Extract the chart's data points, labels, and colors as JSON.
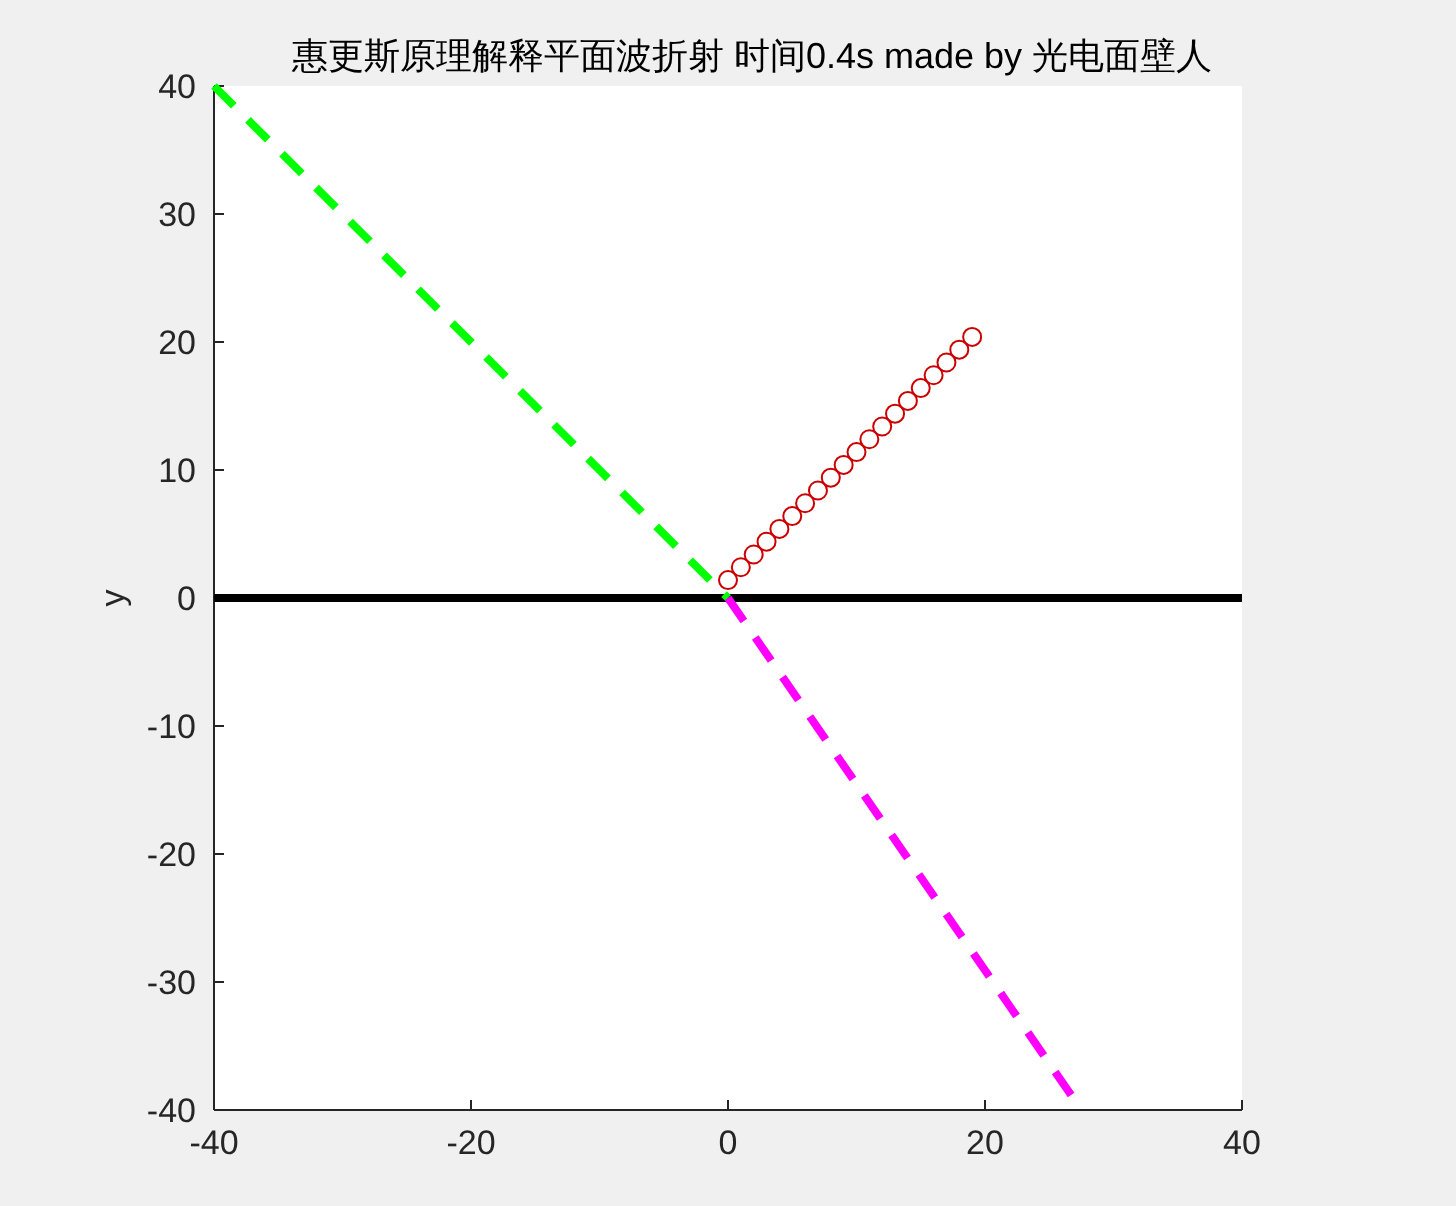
{
  "chart_data": {
    "type": "line",
    "title": "惠更斯原理解释平面波折射 时间0.4s made by 光电面壁人",
    "ylabel": "y",
    "xlim": [
      -40,
      40
    ],
    "ylim": [
      -40,
      40
    ],
    "xticks": [
      -40,
      -20,
      0,
      20,
      40
    ],
    "yticks": [
      -40,
      -30,
      -20,
      -10,
      0,
      10,
      20,
      30,
      40
    ],
    "grid": false,
    "series": [
      {
        "color": "#000000",
        "line_style": "solid",
        "x": [
          -40,
          40
        ],
        "values": [
          0,
          0
        ]
      },
      {
        "color": "#00ff00",
        "line_style": "dashed",
        "x": [
          -40,
          0
        ],
        "values": [
          40,
          0
        ]
      },
      {
        "color": "#ff00ff",
        "line_style": "dashed",
        "x": [
          0,
          27.5
        ],
        "values": [
          0,
          -40
        ]
      },
      {
        "type": "scatter",
        "color": "#cc0000",
        "marker": "circle",
        "x": [
          0,
          1,
          2,
          3,
          4,
          5,
          6,
          7,
          8,
          9,
          10,
          11,
          12,
          13,
          14,
          15,
          16,
          17,
          18,
          19
        ],
        "values": [
          1.4,
          2.4,
          3.4,
          4.4,
          5.4,
          6.4,
          7.4,
          8.4,
          9.4,
          10.4,
          11.4,
          12.4,
          13.4,
          14.4,
          15.4,
          16.4,
          17.4,
          18.4,
          19.4,
          20.4
        ]
      }
    ]
  }
}
